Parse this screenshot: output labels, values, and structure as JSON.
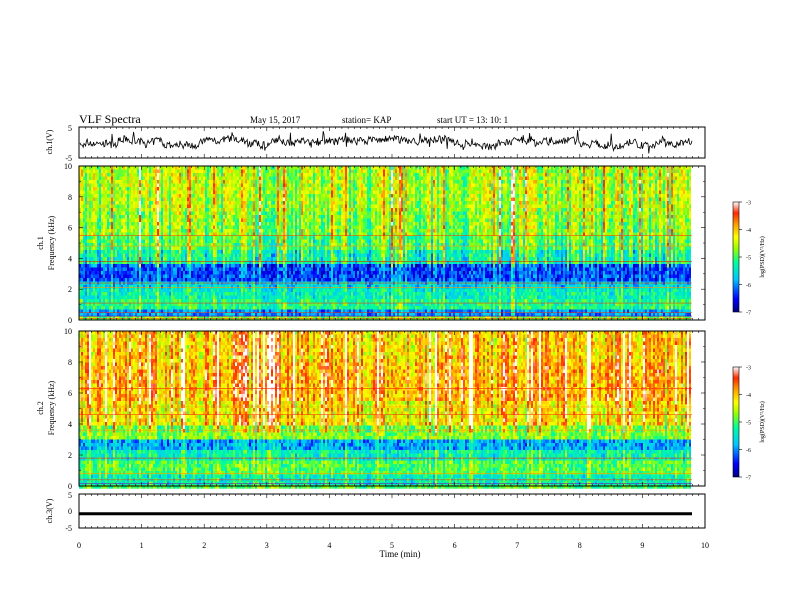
{
  "header": {
    "title": "VLF Spectra",
    "date": "May 15, 2017",
    "station": "station= KAP",
    "start": "start  UT =   13: 10: 1"
  },
  "chart_data": [
    {
      "type": "line",
      "ylabel": "ch.1(V)",
      "ylim": [
        -5,
        5
      ],
      "yticks": [
        "5",
        "-5"
      ],
      "xlim": [
        0,
        10
      ],
      "description_series": "ch1 voltage waveform, noisy around -1..0 V"
    },
    {
      "type": "heatmap",
      "ylabel": "ch.1\nFrequency (kHz)",
      "ylabel_line1": "ch.1",
      "ylabel_line2": "Frequency (kHz)",
      "ylim": [
        0,
        10
      ],
      "yticks": [
        "0",
        "2",
        "4",
        "6",
        "8",
        "10"
      ],
      "xlim": [
        0,
        10
      ],
      "colorbar": {
        "label": "log(PSD)(V²/Hz)",
        "ticks": [
          "-3",
          "-4",
          "-5",
          "-6",
          "-7"
        ],
        "range": [
          -7,
          -3
        ]
      }
    },
    {
      "type": "heatmap",
      "ylabel": "ch.2\nFrequency (kHz)",
      "ylabel_line1": "ch.2",
      "ylabel_line2": "Frequency (kHz)",
      "ylim": [
        0,
        10
      ],
      "yticks": [
        "0",
        "2",
        "4",
        "6",
        "8",
        "10"
      ],
      "xlim": [
        0,
        10
      ],
      "colorbar": {
        "label": "log(PSD)(V²/Hz)",
        "ticks": [
          "-3",
          "-4",
          "-5",
          "-6",
          "-7"
        ],
        "range": [
          -7,
          -3
        ]
      }
    },
    {
      "type": "line",
      "ylabel": "ch.3(V)",
      "ylim": [
        -5,
        5
      ],
      "yticks": [
        "5",
        "0",
        "-5"
      ],
      "xlim": [
        0,
        10
      ],
      "xlabel": "Time  (min)",
      "xticks": [
        "0",
        "1",
        "2",
        "3",
        "4",
        "5",
        "6",
        "7",
        "8",
        "9",
        "10"
      ],
      "constant_value": -0.8
    }
  ],
  "colors": {
    "colormap": [
      "#000080",
      "#0000ff",
      "#00c8ff",
      "#00ff9a",
      "#9aff00",
      "#ffff00",
      "#ff9900",
      "#ff2a00",
      "#ffffff"
    ]
  }
}
